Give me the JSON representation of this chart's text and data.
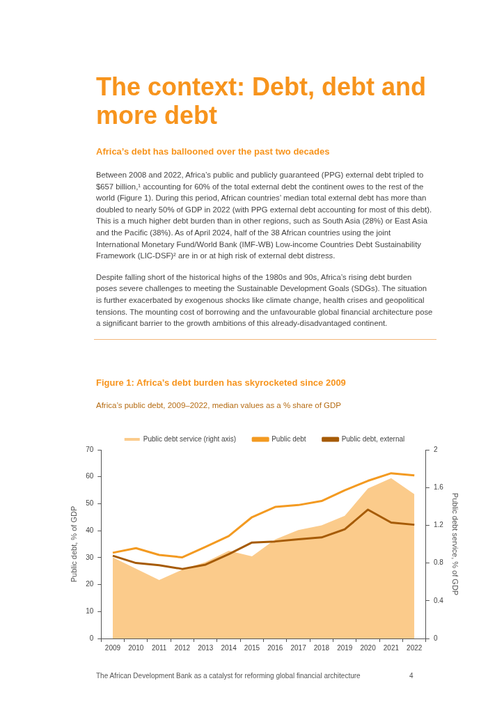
{
  "chart_data": {
    "type": "line",
    "title": "Figure 1: Africa’s debt burden has skyrocketed since 2009",
    "subtitle": "Africa’s public debt, 2009–2022, median values as a % share of GDP",
    "ylabel": "Public debt, % of GDP",
    "y2label": "Public debt service, % of GDP",
    "categories": [
      "2009",
      "2010",
      "2011",
      "2012",
      "2013",
      "2014",
      "2015",
      "2016",
      "2017",
      "2018",
      "2019",
      "2020",
      "2021",
      "2022"
    ],
    "series": [
      {
        "name": "Public debt service (right axis)",
        "type": "area",
        "axis": "y2",
        "color": "#fbcb8b",
        "values": [
          0.86,
          0.74,
          0.62,
          0.73,
          0.81,
          0.93,
          0.87,
          1.05,
          1.15,
          1.2,
          1.3,
          1.59,
          1.7,
          1.53
        ]
      },
      {
        "name": "Public debt",
        "color": "#f39a21",
        "values": [
          31.8,
          33.5,
          31,
          30.1,
          34,
          38,
          45,
          48.8,
          49.5,
          51,
          55,
          58.5,
          61.3,
          60.5
        ]
      },
      {
        "name": "Public debt, external",
        "color": "#a65b06",
        "values": [
          30.7,
          28,
          27.2,
          25.8,
          27.4,
          31.3,
          35.6,
          36,
          36.8,
          37.5,
          40.5,
          47.8,
          43,
          42.2
        ]
      }
    ],
    "ylim": [
      0,
      70
    ],
    "yticks": [
      0,
      10,
      20,
      30,
      40,
      50,
      60,
      70
    ],
    "y2lim": [
      0,
      2
    ],
    "y2ticks": [
      0,
      0.4,
      0.8,
      1.2,
      1.6,
      2
    ],
    "grid": false,
    "legend": "top",
    "marker": "none",
    "line_style": "solid",
    "annotations": [
      "The context: Debt, debt and more debt",
      "Africa’s debt has ballooned over the past two decades",
      "Between 2008 and 2022, Africa’s public and publicly guaranteed (PPG) external debt tripled to $657 billion,¹ accounting for 60% of the total external debt the continent owes to the rest of the world (Figure 1). During this period, African countries’ median total external debt has more than doubled to nearly 50% of GDP in 2022 (with PPG external debt accounting for most of this debt). This is a much higher debt burden than in other regions, such as South Asia (28%) or East Asia and the Pacific (38%). As of April 2024, half of the 38 African countries using the joint International Monetary Fund/World Bank (IMF-WB) Low-income Countries Debt Sustainability Framework (LIC-DSF)² are in or at high risk of external debt distress.",
      "Despite falling short of the historical highs of the 1980s and 90s, Africa’s rising debt burden poses severe challenges to meeting the Sustainable Development Goals (SDGs). The situation is further exacerbated by exogenous shocks like climate change, health crises and geopolitical tensions. The mounting cost of borrowing and the unfavourable global financial architecture pose a significant barrier to the growth ambitions of this already-disadvantaged continent.",
      "The African Development Bank as a catalyst for reforming global financial architecture",
      "4"
    ]
  }
}
